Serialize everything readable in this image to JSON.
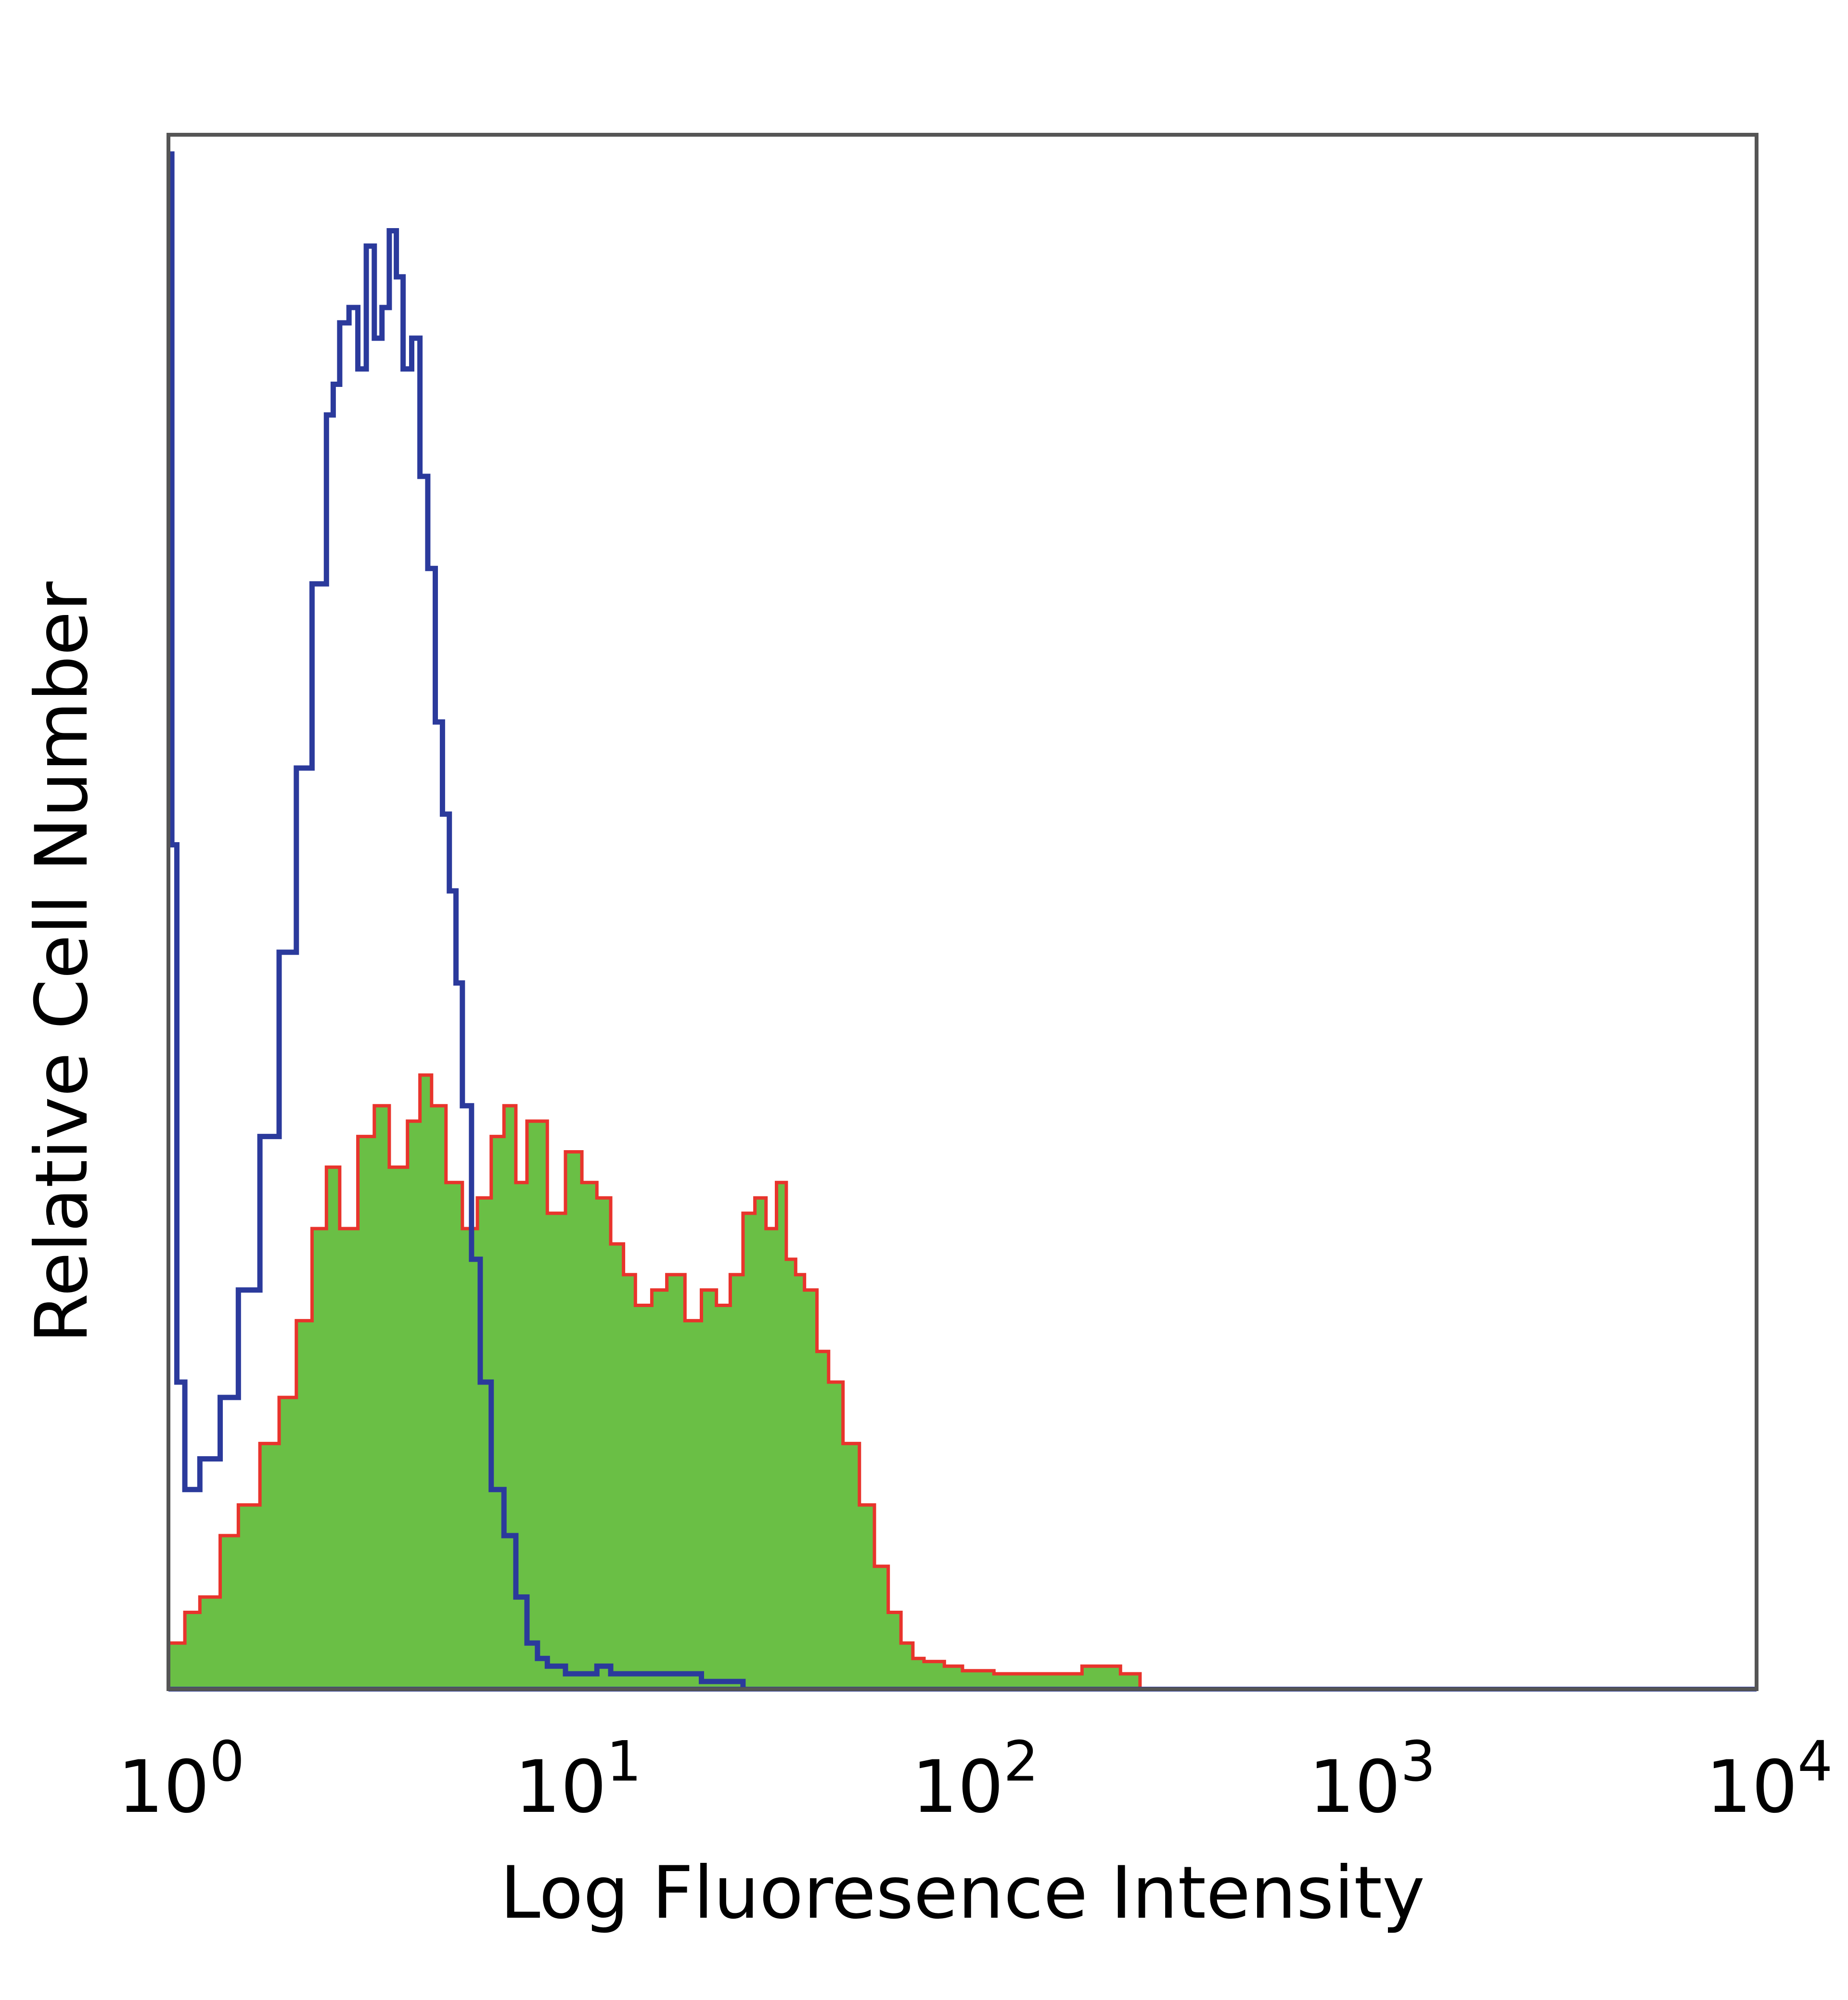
{
  "chart_data": {
    "type": "area",
    "xscale": "log",
    "xlim": [
      1,
      10000
    ],
    "ylim": [
      0,
      1
    ],
    "grid": false,
    "xlabel": "Log Fluoresence Intensity",
    "ylabel": "Relative Cell Number",
    "x_ticks": [
      {
        "value": 1,
        "base": "10",
        "exp": "0"
      },
      {
        "value": 10,
        "base": "10",
        "exp": "1"
      },
      {
        "value": 100,
        "base": "10",
        "exp": "2"
      },
      {
        "value": 1000,
        "base": "10",
        "exp": "3"
      },
      {
        "value": 10000,
        "base": "10",
        "exp": "4"
      }
    ],
    "series": [
      {
        "style": "filled",
        "fill_color": "#6abf45",
        "line_color": "#e8342c",
        "x": [
          1.0,
          1.1,
          1.2,
          1.35,
          1.5,
          1.7,
          1.9,
          2.1,
          2.3,
          2.5,
          2.7,
          3.0,
          3.3,
          3.6,
          4.0,
          4.3,
          4.6,
          5.0,
          5.5,
          6.0,
          6.5,
          7.0,
          7.5,
          8.0,
          9.0,
          10.0,
          11.0,
          12.0,
          13.0,
          14.0,
          15.0,
          16.5,
          18.0,
          20.0,
          22.0,
          24.0,
          26.0,
          28.0,
          30.0,
          32.0,
          34.0,
          36.0,
          38.0,
          40.0,
          43.0,
          46.0,
          50.0,
          55.0,
          60.0,
          65.0,
          70.0,
          75.0,
          80.0,
          90.0,
          100.0,
          120.0,
          150.0,
          200.0,
          250.0,
          280.0
        ],
        "y": [
          0.03,
          0.05,
          0.06,
          0.1,
          0.12,
          0.16,
          0.19,
          0.24,
          0.3,
          0.34,
          0.3,
          0.36,
          0.38,
          0.34,
          0.37,
          0.4,
          0.38,
          0.33,
          0.3,
          0.32,
          0.36,
          0.38,
          0.33,
          0.37,
          0.31,
          0.35,
          0.33,
          0.32,
          0.29,
          0.27,
          0.25,
          0.26,
          0.27,
          0.24,
          0.26,
          0.25,
          0.27,
          0.31,
          0.32,
          0.3,
          0.33,
          0.28,
          0.27,
          0.26,
          0.22,
          0.2,
          0.16,
          0.12,
          0.08,
          0.05,
          0.03,
          0.02,
          0.018,
          0.015,
          0.012,
          0.01,
          0.01,
          0.015,
          0.01,
          0.0
        ]
      },
      {
        "style": "line",
        "line_color": "#2b3a9c",
        "x": [
          1.0,
          1.02,
          1.05,
          1.1,
          1.2,
          1.35,
          1.5,
          1.7,
          1.9,
          2.1,
          2.3,
          2.5,
          2.6,
          2.7,
          2.85,
          3.0,
          3.15,
          3.3,
          3.45,
          3.6,
          3.75,
          3.9,
          4.1,
          4.3,
          4.5,
          4.7,
          4.9,
          5.1,
          5.3,
          5.5,
          5.8,
          6.1,
          6.5,
          7.0,
          7.5,
          8.0,
          8.5,
          9.0,
          10.0,
          11.0,
          12.0,
          13.0,
          15.0,
          18.0,
          22.0,
          26.0,
          28.0
        ],
        "y": [
          1.0,
          0.55,
          0.2,
          0.13,
          0.15,
          0.19,
          0.26,
          0.36,
          0.48,
          0.6,
          0.72,
          0.83,
          0.85,
          0.89,
          0.9,
          0.86,
          0.94,
          0.88,
          0.9,
          0.95,
          0.92,
          0.86,
          0.88,
          0.79,
          0.73,
          0.63,
          0.57,
          0.52,
          0.46,
          0.38,
          0.28,
          0.2,
          0.13,
          0.1,
          0.06,
          0.03,
          0.02,
          0.015,
          0.01,
          0.01,
          0.015,
          0.01,
          0.01,
          0.01,
          0.005,
          0.005,
          0.0
        ]
      }
    ]
  }
}
